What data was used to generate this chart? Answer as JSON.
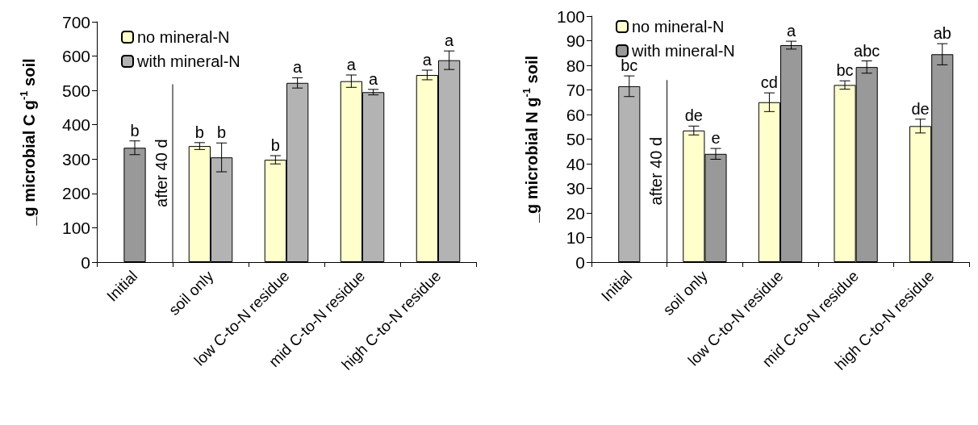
{
  "chart_data": [
    {
      "type": "bar",
      "ylabel": "_g microbial C g$^{-1}$ soil",
      "categories": [
        "Initial",
        "soil only",
        "low C-to-N residue",
        "mid C-to-N residue",
        "high C-to-N residue"
      ],
      "ylim": [
        0,
        700
      ],
      "yticks": [
        0,
        100,
        200,
        300,
        400,
        500,
        600,
        700
      ],
      "grid": false,
      "legend": "top left",
      "series": [
        {
          "color": "#999999",
          "values": [
            333,
            null,
            null,
            null,
            null
          ],
          "errors": [
            20,
            null,
            null,
            null,
            null
          ],
          "value_labels": [
            "b",
            null,
            null,
            null,
            null
          ]
        },
        {
          "name": "no mineral-N",
          "color": "#ffffcc",
          "values": [
            null,
            338,
            298,
            527,
            545
          ],
          "errors": [
            null,
            10,
            12,
            18,
            14
          ],
          "value_labels": [
            null,
            "b",
            "b",
            "a",
            "a"
          ]
        },
        {
          "name": "with mineral-N",
          "color": "#b3b3b3",
          "values": [
            null,
            305,
            522,
            495,
            588
          ],
          "errors": [
            null,
            42,
            15,
            8,
            27
          ],
          "value_labels": [
            null,
            "b",
            "a",
            "a",
            "a"
          ]
        }
      ],
      "annotations": [
        "after 40 d"
      ]
    },
    {
      "type": "bar",
      "ylabel": "_g microbial N g$^{-1}$ soil",
      "categories": [
        "Initial",
        "soil only",
        "low C-to-N residue",
        "mid C-to-N residue",
        "high C-to-N residue"
      ],
      "ylim": [
        0,
        100
      ],
      "yticks": [
        0,
        10,
        20,
        30,
        40,
        50,
        60,
        70,
        80,
        90,
        100
      ],
      "grid": false,
      "legend": "top left",
      "series": [
        {
          "color": "#b3b3b3",
          "values": [
            71.5,
            null,
            null,
            null,
            null
          ],
          "errors": [
            4.2,
            null,
            null,
            null,
            null
          ],
          "value_labels": [
            "bc",
            null,
            null,
            null,
            null
          ]
        },
        {
          "name": "no mineral-N",
          "color": "#ffffcc",
          "values": [
            null,
            53.5,
            65,
            72,
            55.3
          ],
          "errors": [
            null,
            1.8,
            3.8,
            1.7,
            2.8
          ],
          "value_labels": [
            null,
            "de",
            "cd",
            "bc",
            "de"
          ]
        },
        {
          "name": "with mineral-N",
          "color": "#999999",
          "values": [
            null,
            44,
            88.2,
            79.3,
            84.5
          ],
          "errors": [
            null,
            2.2,
            1.6,
            2.5,
            4.3
          ],
          "value_labels": [
            null,
            "e",
            "a",
            "abc",
            "ab"
          ]
        }
      ],
      "annotations": [
        "after 40 d"
      ]
    }
  ]
}
